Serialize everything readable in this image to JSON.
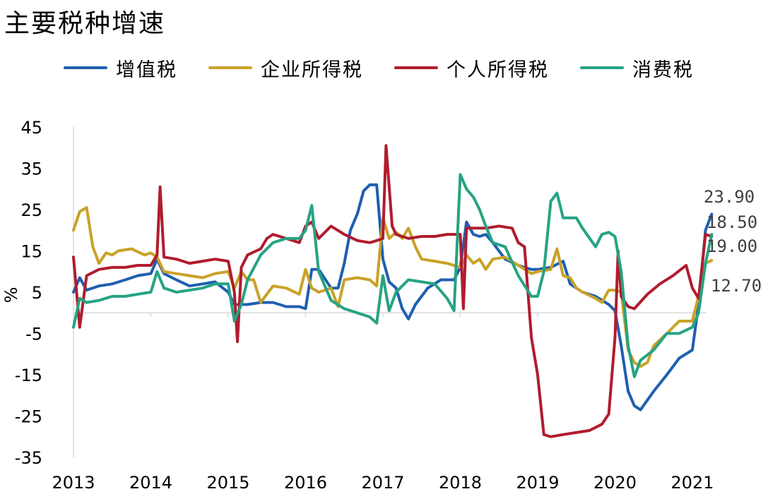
{
  "chart_data": {
    "type": "line",
    "title": "主要税种增速",
    "ylabel": "%",
    "xlabel": "",
    "ylim": [
      -35,
      45
    ],
    "yticks": [
      45,
      35,
      25,
      15,
      5,
      -5,
      -15,
      -25,
      -35
    ],
    "xticks": [
      "2013",
      "2014",
      "2015",
      "2016",
      "2017",
      "2018",
      "2019",
      "2020",
      "2021"
    ],
    "xlim": [
      2013.0,
      2021.3
    ],
    "legend_position": "top",
    "grid": false,
    "series": [
      {
        "name": "增值税",
        "color": "#1f5fb0",
        "points": [
          [
            2013.0,
            5
          ],
          [
            2013.08,
            8.5
          ],
          [
            2013.17,
            5.5
          ],
          [
            2013.33,
            6.5
          ],
          [
            2013.5,
            7
          ],
          [
            2013.67,
            8
          ],
          [
            2013.83,
            9
          ],
          [
            2014.0,
            9.5
          ],
          [
            2014.08,
            13
          ],
          [
            2014.17,
            9.5
          ],
          [
            2014.33,
            8
          ],
          [
            2014.5,
            6.5
          ],
          [
            2014.67,
            7
          ],
          [
            2014.83,
            7.5
          ],
          [
            2015.0,
            5
          ],
          [
            2015.08,
            2
          ],
          [
            2015.25,
            2
          ],
          [
            2015.42,
            2.5
          ],
          [
            2015.58,
            2.5
          ],
          [
            2015.75,
            1.5
          ],
          [
            2015.92,
            1.5
          ],
          [
            2016.0,
            1
          ],
          [
            2016.08,
            10.5
          ],
          [
            2016.17,
            10.5
          ],
          [
            2016.33,
            6
          ],
          [
            2016.42,
            6
          ],
          [
            2016.5,
            12
          ],
          [
            2016.58,
            20
          ],
          [
            2016.67,
            24
          ],
          [
            2016.75,
            29.5
          ],
          [
            2016.83,
            31
          ],
          [
            2016.92,
            31
          ],
          [
            2017.0,
            13
          ],
          [
            2017.08,
            7.5
          ],
          [
            2017.17,
            6
          ],
          [
            2017.25,
            1
          ],
          [
            2017.33,
            -1.5
          ],
          [
            2017.42,
            2
          ],
          [
            2017.58,
            6
          ],
          [
            2017.75,
            8
          ],
          [
            2017.92,
            8
          ],
          [
            2018.0,
            11
          ],
          [
            2018.08,
            22
          ],
          [
            2018.17,
            19
          ],
          [
            2018.25,
            18.5
          ],
          [
            2018.33,
            19
          ],
          [
            2018.42,
            17
          ],
          [
            2018.58,
            13
          ],
          [
            2018.75,
            11.5
          ],
          [
            2018.92,
            10.5
          ],
          [
            2019.0,
            10.5
          ],
          [
            2019.17,
            11
          ],
          [
            2019.33,
            12.5
          ],
          [
            2019.42,
            7
          ],
          [
            2019.58,
            5
          ],
          [
            2019.75,
            4
          ],
          [
            2019.92,
            2
          ],
          [
            2020.0,
            0.5
          ],
          [
            2020.08,
            -8
          ],
          [
            2020.17,
            -19
          ],
          [
            2020.25,
            -22.5
          ],
          [
            2020.33,
            -23.5
          ],
          [
            2020.5,
            -19
          ],
          [
            2020.67,
            -15
          ],
          [
            2020.83,
            -11
          ],
          [
            2021.0,
            -9
          ],
          [
            2021.08,
            2
          ],
          [
            2021.17,
            20
          ],
          [
            2021.25,
            23.9
          ]
        ]
      },
      {
        "name": "企业所得税",
        "color": "#c9a227",
        "points": [
          [
            2013.0,
            20
          ],
          [
            2013.08,
            24.5
          ],
          [
            2013.17,
            25.5
          ],
          [
            2013.25,
            16
          ],
          [
            2013.33,
            12
          ],
          [
            2013.42,
            14.5
          ],
          [
            2013.5,
            14
          ],
          [
            2013.58,
            15
          ],
          [
            2013.75,
            15.5
          ],
          [
            2013.92,
            14
          ],
          [
            2014.0,
            14.5
          ],
          [
            2014.08,
            13.5
          ],
          [
            2014.17,
            10
          ],
          [
            2014.33,
            9.5
          ],
          [
            2014.5,
            9
          ],
          [
            2014.67,
            8.5
          ],
          [
            2014.83,
            9.5
          ],
          [
            2015.0,
            10
          ],
          [
            2015.08,
            6
          ],
          [
            2015.17,
            10
          ],
          [
            2015.25,
            8
          ],
          [
            2015.33,
            8
          ],
          [
            2015.42,
            2.5
          ],
          [
            2015.58,
            6.5
          ],
          [
            2015.75,
            6
          ],
          [
            2015.92,
            4.5
          ],
          [
            2016.0,
            10.5
          ],
          [
            2016.08,
            6
          ],
          [
            2016.17,
            5
          ],
          [
            2016.25,
            5.5
          ],
          [
            2016.33,
            6
          ],
          [
            2016.42,
            1.5
          ],
          [
            2016.5,
            8
          ],
          [
            2016.67,
            8.5
          ],
          [
            2016.83,
            8
          ],
          [
            2016.92,
            6.5
          ],
          [
            2017.0,
            23
          ],
          [
            2017.08,
            18
          ],
          [
            2017.17,
            19.5
          ],
          [
            2017.25,
            18
          ],
          [
            2017.33,
            20.5
          ],
          [
            2017.42,
            16
          ],
          [
            2017.5,
            13
          ],
          [
            2017.67,
            12.5
          ],
          [
            2017.83,
            12
          ],
          [
            2018.0,
            11
          ],
          [
            2018.08,
            14
          ],
          [
            2018.17,
            12
          ],
          [
            2018.25,
            13
          ],
          [
            2018.33,
            10.5
          ],
          [
            2018.42,
            13
          ],
          [
            2018.58,
            13.5
          ],
          [
            2018.75,
            11.5
          ],
          [
            2018.92,
            9.5
          ],
          [
            2019.0,
            10
          ],
          [
            2019.17,
            10.5
          ],
          [
            2019.25,
            15.5
          ],
          [
            2019.33,
            9
          ],
          [
            2019.42,
            8.5
          ],
          [
            2019.5,
            6
          ],
          [
            2019.58,
            5
          ],
          [
            2019.75,
            3.5
          ],
          [
            2019.83,
            2.5
          ],
          [
            2019.92,
            5.5
          ],
          [
            2020.0,
            5.5
          ],
          [
            2020.08,
            5
          ],
          [
            2020.17,
            -9
          ],
          [
            2020.25,
            -12
          ],
          [
            2020.33,
            -13
          ],
          [
            2020.42,
            -12
          ],
          [
            2020.5,
            -8
          ],
          [
            2020.67,
            -5
          ],
          [
            2020.83,
            -2
          ],
          [
            2021.0,
            -2
          ],
          [
            2021.08,
            4
          ],
          [
            2021.17,
            12
          ],
          [
            2021.25,
            12.7
          ]
        ]
      },
      {
        "name": "个人所得税",
        "color": "#b01c2e",
        "points": [
          [
            2013.0,
            13.5
          ],
          [
            2013.08,
            -3.5
          ],
          [
            2013.17,
            9
          ],
          [
            2013.33,
            10.5
          ],
          [
            2013.5,
            11
          ],
          [
            2013.67,
            11
          ],
          [
            2013.83,
            11.5
          ],
          [
            2014.0,
            11.5
          ],
          [
            2014.08,
            14
          ],
          [
            2014.12,
            30.5
          ],
          [
            2014.17,
            13.5
          ],
          [
            2014.33,
            13
          ],
          [
            2014.5,
            12
          ],
          [
            2014.67,
            12.5
          ],
          [
            2014.83,
            13
          ],
          [
            2015.0,
            12.5
          ],
          [
            2015.08,
            5
          ],
          [
            2015.12,
            -7
          ],
          [
            2015.17,
            11
          ],
          [
            2015.25,
            14
          ],
          [
            2015.42,
            15.5
          ],
          [
            2015.5,
            18
          ],
          [
            2015.58,
            19
          ],
          [
            2015.75,
            18
          ],
          [
            2015.92,
            17
          ],
          [
            2016.0,
            21
          ],
          [
            2016.08,
            22
          ],
          [
            2016.17,
            18
          ],
          [
            2016.33,
            21
          ],
          [
            2016.5,
            19
          ],
          [
            2016.67,
            17.5
          ],
          [
            2016.83,
            17
          ],
          [
            2016.92,
            17.5
          ],
          [
            2017.0,
            18
          ],
          [
            2017.04,
            40.5
          ],
          [
            2017.12,
            21
          ],
          [
            2017.17,
            19
          ],
          [
            2017.33,
            18
          ],
          [
            2017.5,
            18.5
          ],
          [
            2017.67,
            18.5
          ],
          [
            2017.83,
            19
          ],
          [
            2017.92,
            19
          ],
          [
            2018.0,
            19
          ],
          [
            2018.04,
            1
          ],
          [
            2018.08,
            20.5
          ],
          [
            2018.17,
            20.5
          ],
          [
            2018.33,
            20.5
          ],
          [
            2018.5,
            21
          ],
          [
            2018.67,
            20.5
          ],
          [
            2018.75,
            17
          ],
          [
            2018.83,
            16
          ],
          [
            2018.92,
            -6
          ],
          [
            2019.0,
            -15
          ],
          [
            2019.08,
            -29.5
          ],
          [
            2019.17,
            -30
          ],
          [
            2019.33,
            -29.5
          ],
          [
            2019.5,
            -29
          ],
          [
            2019.67,
            -28.5
          ],
          [
            2019.83,
            -27
          ],
          [
            2019.92,
            -24.5
          ],
          [
            2020.0,
            -6
          ],
          [
            2020.04,
            15
          ],
          [
            2020.08,
            4
          ],
          [
            2020.17,
            1.5
          ],
          [
            2020.25,
            1
          ],
          [
            2020.42,
            4.5
          ],
          [
            2020.58,
            7
          ],
          [
            2020.75,
            9
          ],
          [
            2020.92,
            11.5
          ],
          [
            2021.0,
            6
          ],
          [
            2021.08,
            3.5
          ],
          [
            2021.17,
            19
          ],
          [
            2021.25,
            18.5
          ]
        ]
      },
      {
        "name": "消费税",
        "color": "#26a383",
        "points": [
          [
            2013.0,
            -3.5
          ],
          [
            2013.08,
            3.5
          ],
          [
            2013.17,
            2.5
          ],
          [
            2013.33,
            3
          ],
          [
            2013.5,
            4
          ],
          [
            2013.67,
            4
          ],
          [
            2013.83,
            4.5
          ],
          [
            2014.0,
            5
          ],
          [
            2014.08,
            10
          ],
          [
            2014.17,
            6
          ],
          [
            2014.33,
            5
          ],
          [
            2014.5,
            5.5
          ],
          [
            2014.67,
            6
          ],
          [
            2014.83,
            7
          ],
          [
            2015.0,
            7
          ],
          [
            2015.08,
            -2
          ],
          [
            2015.17,
            2
          ],
          [
            2015.25,
            8
          ],
          [
            2015.42,
            14
          ],
          [
            2015.58,
            17
          ],
          [
            2015.75,
            18
          ],
          [
            2015.92,
            18
          ],
          [
            2016.0,
            20
          ],
          [
            2016.08,
            26
          ],
          [
            2016.17,
            10
          ],
          [
            2016.33,
            3
          ],
          [
            2016.5,
            1
          ],
          [
            2016.67,
            0
          ],
          [
            2016.83,
            -1
          ],
          [
            2016.92,
            -2.5
          ],
          [
            2017.0,
            9
          ],
          [
            2017.08,
            0.5
          ],
          [
            2017.17,
            5
          ],
          [
            2017.33,
            8
          ],
          [
            2017.5,
            7.5
          ],
          [
            2017.67,
            7
          ],
          [
            2017.83,
            3.5
          ],
          [
            2017.92,
            0.5
          ],
          [
            2018.0,
            33.5
          ],
          [
            2018.08,
            30
          ],
          [
            2018.17,
            28
          ],
          [
            2018.25,
            25
          ],
          [
            2018.33,
            21
          ],
          [
            2018.42,
            17
          ],
          [
            2018.58,
            16
          ],
          [
            2018.75,
            9
          ],
          [
            2018.92,
            4
          ],
          [
            2019.0,
            4
          ],
          [
            2019.08,
            10
          ],
          [
            2019.17,
            27
          ],
          [
            2019.25,
            29
          ],
          [
            2019.33,
            23
          ],
          [
            2019.5,
            23
          ],
          [
            2019.58,
            20.5
          ],
          [
            2019.75,
            16
          ],
          [
            2019.83,
            19
          ],
          [
            2019.92,
            19.5
          ],
          [
            2020.0,
            18.5
          ],
          [
            2020.08,
            10
          ],
          [
            2020.17,
            -8
          ],
          [
            2020.25,
            -15.5
          ],
          [
            2020.33,
            -11.5
          ],
          [
            2020.5,
            -9
          ],
          [
            2020.67,
            -5
          ],
          [
            2020.83,
            -5
          ],
          [
            2021.0,
            -3.5
          ],
          [
            2021.08,
            0
          ],
          [
            2021.17,
            12
          ],
          [
            2021.25,
            19
          ]
        ]
      }
    ],
    "end_labels": [
      {
        "text": "23.90",
        "value": 23.9,
        "color": "#404040"
      },
      {
        "text": "18.50",
        "value": 18.5,
        "color": "#404040"
      },
      {
        "text": "19.00",
        "value": 19.0,
        "color": "#404040"
      },
      {
        "text": "12.70",
        "value": 12.7,
        "color": "#404040"
      }
    ]
  }
}
